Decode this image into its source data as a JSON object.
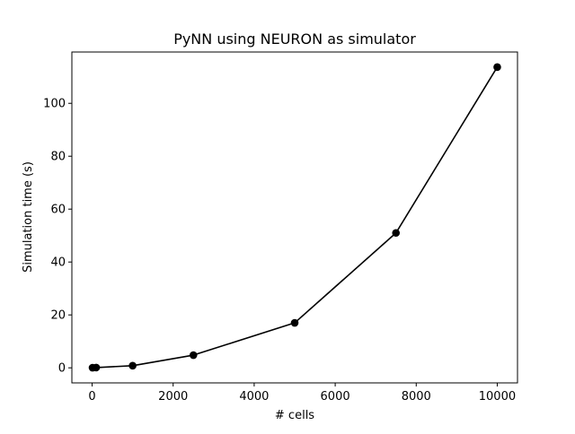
{
  "chart_data": {
    "type": "line",
    "title": "PyNN using NEURON as simulator",
    "xlabel": "# cells",
    "ylabel": "Simulation time (s)",
    "xlim": [
      -500,
      10500
    ],
    "ylim": [
      -5.7,
      119.4
    ],
    "xticks": [
      0,
      2000,
      4000,
      6000,
      8000,
      10000
    ],
    "yticks": [
      0,
      20,
      40,
      60,
      80,
      100
    ],
    "grid": false,
    "legend": "none",
    "series": [
      {
        "color": "#000000",
        "marker": "circle",
        "x": [
          10,
          100,
          1000,
          2500,
          5000,
          7500,
          10000
        ],
        "y": [
          0.05,
          0.1,
          0.8,
          4.8,
          17.0,
          51.0,
          113.7
        ]
      }
    ]
  }
}
